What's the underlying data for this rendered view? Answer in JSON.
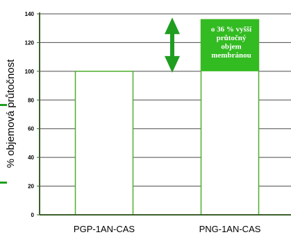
{
  "chart_data": {
    "type": "bar",
    "categories": [
      "PGP-1AN-CAS",
      "PNG-1AN-CAS"
    ],
    "values": [
      100,
      136
    ],
    "ylabel": "% objemová  průtočnost",
    "ylim": [
      0,
      140
    ],
    "yticks": [
      0,
      20,
      40,
      60,
      80,
      100,
      120,
      140
    ],
    "grid": true,
    "annotation": {
      "lines": [
        "o 36 % vyšší",
        "průtočný",
        "objem",
        "membránou"
      ]
    },
    "colors": {
      "axis": "#3a5f2a",
      "grid": "#4a4a4a",
      "bar_fill": "#ffffff",
      "bar_stroke": "#4caf2a",
      "annotation_fill": "#33bb22",
      "arrow": "#1f9e1f",
      "accent_left": "#1f9e1f"
    }
  }
}
